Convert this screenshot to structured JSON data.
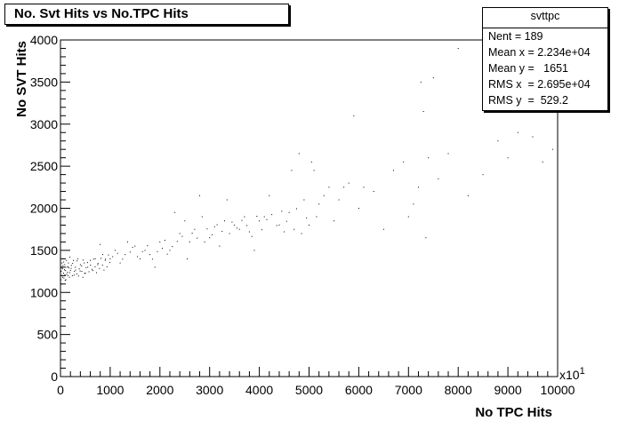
{
  "title": "No. Svt Hits vs No.TPC Hits",
  "stats": {
    "name": "svttpc",
    "rows": [
      "Nent = 189",
      "Mean x = 2.234e+04",
      "Mean y =   1651",
      "RMS x  = 2.695e+04",
      "RMS y  =  529.2"
    ]
  },
  "chart_data": {
    "type": "scatter",
    "title": "No. Svt Hits vs No.TPC Hits",
    "xlabel": "No TPC Hits",
    "ylabel": "No SVT Hits",
    "x_multiplier": "x10",
    "x_multiplier_exp": "1",
    "xlim": [
      0,
      10000
    ],
    "ylim": [
      0,
      4000
    ],
    "x_ticks": [
      0,
      1000,
      2000,
      3000,
      4000,
      5000,
      6000,
      7000,
      8000,
      9000,
      10000
    ],
    "y_ticks": [
      0,
      500,
      1000,
      1500,
      2000,
      2500,
      3000,
      3500,
      4000
    ],
    "grid": false,
    "marker_color": "#000000",
    "points": [
      [
        10,
        1150
      ],
      [
        15,
        1250
      ],
      [
        20,
        1300
      ],
      [
        25,
        1200
      ],
      [
        30,
        1350
      ],
      [
        40,
        1280
      ],
      [
        45,
        1180
      ],
      [
        50,
        1320
      ],
      [
        55,
        1400
      ],
      [
        60,
        1230
      ],
      [
        70,
        1170
      ],
      [
        80,
        1270
      ],
      [
        85,
        1330
      ],
      [
        90,
        1210
      ],
      [
        100,
        1260
      ],
      [
        110,
        1150
      ],
      [
        120,
        1380
      ],
      [
        130,
        1300
      ],
      [
        140,
        1240
      ],
      [
        150,
        1200
      ],
      [
        160,
        1350
      ],
      [
        170,
        1290
      ],
      [
        180,
        1180
      ],
      [
        190,
        1420
      ],
      [
        200,
        1260
      ],
      [
        220,
        1320
      ],
      [
        240,
        1200
      ],
      [
        260,
        1380
      ],
      [
        280,
        1250
      ],
      [
        300,
        1300
      ],
      [
        330,
        1220
      ],
      [
        350,
        1400
      ],
      [
        380,
        1280
      ],
      [
        400,
        1330
      ],
      [
        430,
        1250
      ],
      [
        450,
        1180
      ],
      [
        480,
        1350
      ],
      [
        500,
        1230
      ],
      [
        550,
        1300
      ],
      [
        600,
        1380
      ],
      [
        650,
        1260
      ],
      [
        700,
        1400
      ],
      [
        750,
        1330
      ],
      [
        800,
        1570
      ],
      [
        850,
        1450
      ],
      [
        900,
        1380
      ],
      [
        1000,
        1400
      ],
      [
        1100,
        1500
      ],
      [
        1200,
        1350
      ],
      [
        1300,
        1450
      ],
      [
        1350,
        1600
      ],
      [
        1400,
        1480
      ],
      [
        1500,
        1550
      ],
      [
        1600,
        1400
      ],
      [
        1700,
        1500
      ],
      [
        1800,
        1450
      ],
      [
        1900,
        1300
      ],
      [
        2000,
        1600
      ],
      [
        2100,
        1620
      ],
      [
        2200,
        1500
      ],
      [
        2300,
        1950
      ],
      [
        2400,
        1700
      ],
      [
        2500,
        1850
      ],
      [
        2550,
        1400
      ],
      [
        2600,
        1600
      ],
      [
        2700,
        1750
      ],
      [
        2800,
        2150
      ],
      [
        2850,
        1900
      ],
      [
        2900,
        1600
      ],
      [
        3000,
        1650
      ],
      [
        3100,
        1780
      ],
      [
        3200,
        1550
      ],
      [
        3300,
        1850
      ],
      [
        3350,
        2100
      ],
      [
        3400,
        1700
      ],
      [
        3500,
        1800
      ],
      [
        3600,
        1750
      ],
      [
        3700,
        1900
      ],
      [
        3800,
        1720
      ],
      [
        3900,
        1500
      ],
      [
        4000,
        1850
      ],
      [
        4100,
        1900
      ],
      [
        4200,
        2150
      ],
      [
        4400,
        1800
      ],
      [
        4500,
        1720
      ],
      [
        4600,
        1950
      ],
      [
        4650,
        2450
      ],
      [
        4700,
        1750
      ],
      [
        4800,
        2650
      ],
      [
        4850,
        1700
      ],
      [
        4900,
        2100
      ],
      [
        5000,
        1800
      ],
      [
        5050,
        2550
      ],
      [
        5100,
        2450
      ],
      [
        5150,
        1900
      ],
      [
        5200,
        2050
      ],
      [
        5300,
        2150
      ],
      [
        5400,
        2250
      ],
      [
        5500,
        1850
      ],
      [
        5600,
        2100
      ],
      [
        5700,
        2250
      ],
      [
        5800,
        2300
      ],
      [
        5900,
        3100
      ],
      [
        6000,
        2000
      ],
      [
        6100,
        2250
      ],
      [
        6300,
        2200
      ],
      [
        6500,
        1750
      ],
      [
        6700,
        2450
      ],
      [
        6900,
        2550
      ],
      [
        7000,
        1900
      ],
      [
        7100,
        2050
      ],
      [
        7200,
        2250
      ],
      [
        7250,
        3500
      ],
      [
        7300,
        3150
      ],
      [
        7350,
        1650
      ],
      [
        7400,
        2600
      ],
      [
        7500,
        3550
      ],
      [
        7600,
        2350
      ],
      [
        7800,
        2650
      ],
      [
        8000,
        3900
      ],
      [
        8200,
        2150
      ],
      [
        8500,
        2400
      ],
      [
        8800,
        2800
      ],
      [
        9000,
        2600
      ],
      [
        9200,
        2900
      ],
      [
        9500,
        2850
      ],
      [
        9700,
        2550
      ],
      [
        9900,
        2700
      ],
      [
        20,
        1100
      ],
      [
        35,
        1290
      ],
      [
        65,
        1360
      ],
      [
        95,
        1145
      ],
      [
        125,
        1215
      ],
      [
        155,
        1305
      ],
      [
        185,
        1235
      ],
      [
        215,
        1285
      ],
      [
        245,
        1345
      ],
      [
        275,
        1205
      ],
      [
        305,
        1265
      ],
      [
        335,
        1375
      ],
      [
        365,
        1195
      ],
      [
        395,
        1255
      ],
      [
        425,
        1315
      ],
      [
        455,
        1385
      ],
      [
        485,
        1225
      ],
      [
        515,
        1295
      ],
      [
        545,
        1355
      ],
      [
        575,
        1245
      ],
      [
        605,
        1325
      ],
      [
        635,
        1275
      ],
      [
        665,
        1395
      ],
      [
        695,
        1305
      ],
      [
        725,
        1235
      ],
      [
        755,
        1345
      ],
      [
        785,
        1285
      ],
      [
        815,
        1405
      ],
      [
        845,
        1325
      ],
      [
        875,
        1265
      ],
      [
        905,
        1395
      ],
      [
        935,
        1305
      ],
      [
        965,
        1445
      ],
      [
        995,
        1355
      ],
      [
        1050,
        1425
      ],
      [
        1150,
        1465
      ],
      [
        1250,
        1395
      ],
      [
        1450,
        1535
      ],
      [
        1550,
        1425
      ],
      [
        1650,
        1485
      ],
      [
        1750,
        1555
      ],
      [
        1850,
        1395
      ],
      [
        1950,
        1485
      ],
      [
        2050,
        1525
      ],
      [
        2150,
        1455
      ],
      [
        2250,
        1545
      ],
      [
        2350,
        1605
      ],
      [
        2450,
        1665
      ],
      [
        2650,
        1705
      ],
      [
        2750,
        1645
      ],
      [
        2950,
        1755
      ],
      [
        3050,
        1685
      ],
      [
        3150,
        1805
      ],
      [
        3250,
        1725
      ],
      [
        3450,
        1835
      ],
      [
        3550,
        1765
      ],
      [
        3650,
        1855
      ],
      [
        3750,
        1795
      ],
      [
        3850,
        1665
      ],
      [
        3950,
        1905
      ],
      [
        4050,
        1745
      ],
      [
        4150,
        1865
      ],
      [
        4250,
        1925
      ],
      [
        4350,
        1795
      ],
      [
        4450,
        1965
      ],
      [
        4550,
        1845
      ],
      [
        4750,
        1995
      ],
      [
        4950,
        1885
      ]
    ]
  }
}
